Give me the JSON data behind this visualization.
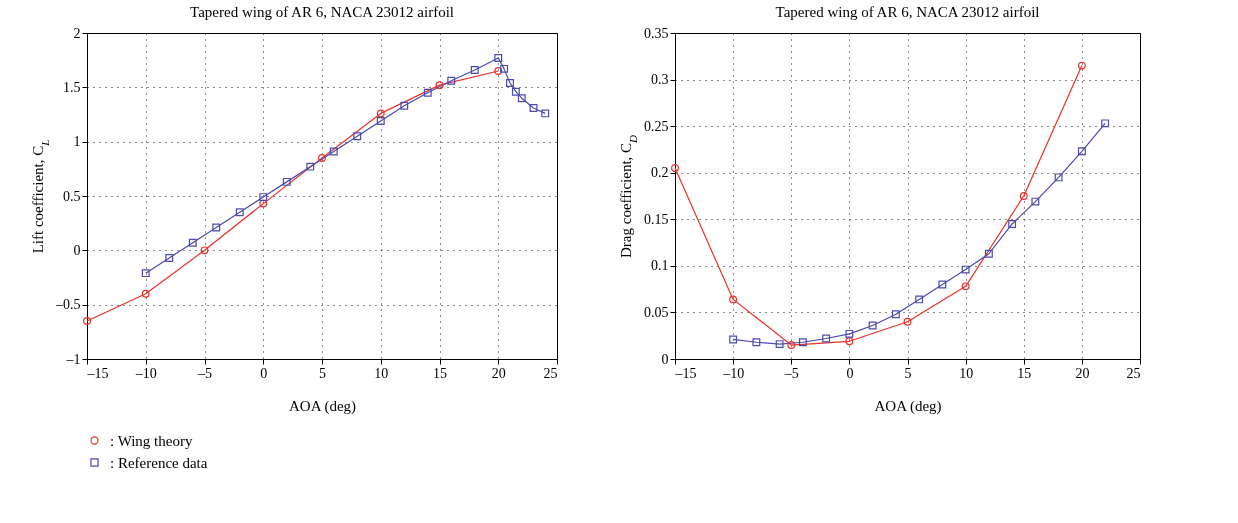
{
  "chart_data": [
    {
      "type": "line",
      "title": "Tapered wing of AR 6, NACA 23012 airfoil",
      "xlabel": "AOA (deg)",
      "ylabel": "Lift coefficient, C$_{L}$",
      "xlim": [
        -15,
        25
      ],
      "xticks": [
        {
          "value": -15,
          "label": "–15"
        },
        {
          "value": -10,
          "label": "–10"
        },
        {
          "value": -5,
          "label": "–5"
        },
        0,
        5,
        10,
        15,
        20,
        25
      ],
      "ylim": [
        -1,
        2
      ],
      "yticks": [
        {
          "value": -1,
          "label": "–1"
        },
        {
          "value": -0.5,
          "label": "–0.5"
        },
        0,
        0.5,
        1,
        1.5,
        2
      ],
      "grid": true,
      "legend": "bottom left",
      "line_style": "solid",
      "series": [
        {
          "name": ": Wing theory",
          "color": "#e8312a",
          "marker": "circle",
          "x": [
            -15,
            -10,
            -5,
            0,
            5,
            10,
            15,
            20
          ],
          "values": [
            -0.65,
            -0.4,
            0,
            0.43,
            0.85,
            1.26,
            1.52,
            1.65
          ]
        },
        {
          "name": ": Reference data",
          "color": "#4a4ab0",
          "marker": "square",
          "x": [
            -10,
            -8,
            -6,
            -4,
            -2,
            0,
            2,
            4,
            6,
            8,
            10,
            12,
            14,
            16,
            18,
            20,
            20.5,
            21,
            21.5,
            22,
            23,
            24
          ],
          "values": [
            -0.21,
            -0.07,
            0.07,
            0.21,
            0.35,
            0.49,
            0.63,
            0.77,
            0.91,
            1.05,
            1.19,
            1.33,
            1.45,
            1.56,
            1.66,
            1.77,
            1.67,
            1.54,
            1.46,
            1.4,
            1.31,
            1.26
          ]
        }
      ]
    },
    {
      "type": "line",
      "title": "Tapered wing of AR 6, NACA 23012 airfoil",
      "xlabel": "AOA (deg)",
      "ylabel": "Drag coefficient, C$_{D}$",
      "xlim": [
        -15,
        25
      ],
      "xticks": [
        {
          "value": -15,
          "label": "–15"
        },
        {
          "value": -10,
          "label": "–10"
        },
        {
          "value": -5,
          "label": "–5"
        },
        0,
        5,
        10,
        15,
        20,
        25
      ],
      "ylim": [
        0,
        0.35
      ],
      "yticks": [
        0,
        0.05,
        0.1,
        0.15,
        0.2,
        0.25,
        0.3,
        0.35
      ],
      "grid": true,
      "line_style": "solid",
      "series": [
        {
          "color": "#e8312a",
          "marker": "circle",
          "x": [
            -15,
            -10,
            -5,
            0,
            5,
            10,
            15,
            20
          ],
          "values": [
            0.205,
            0.064,
            0.015,
            0.019,
            0.04,
            0.078,
            0.175,
            0.315
          ]
        },
        {
          "color": "#4a4ab0",
          "marker": "square",
          "x": [
            -10,
            -8,
            -6,
            -4,
            -2,
            0,
            2,
            4,
            6,
            8,
            10,
            12,
            14,
            16,
            18,
            20,
            22
          ],
          "values": [
            0.021,
            0.018,
            0.016,
            0.018,
            0.022,
            0.027,
            0.036,
            0.048,
            0.064,
            0.08,
            0.096,
            0.113,
            0.145,
            0.169,
            0.195,
            0.223,
            0.253
          ]
        }
      ]
    }
  ]
}
